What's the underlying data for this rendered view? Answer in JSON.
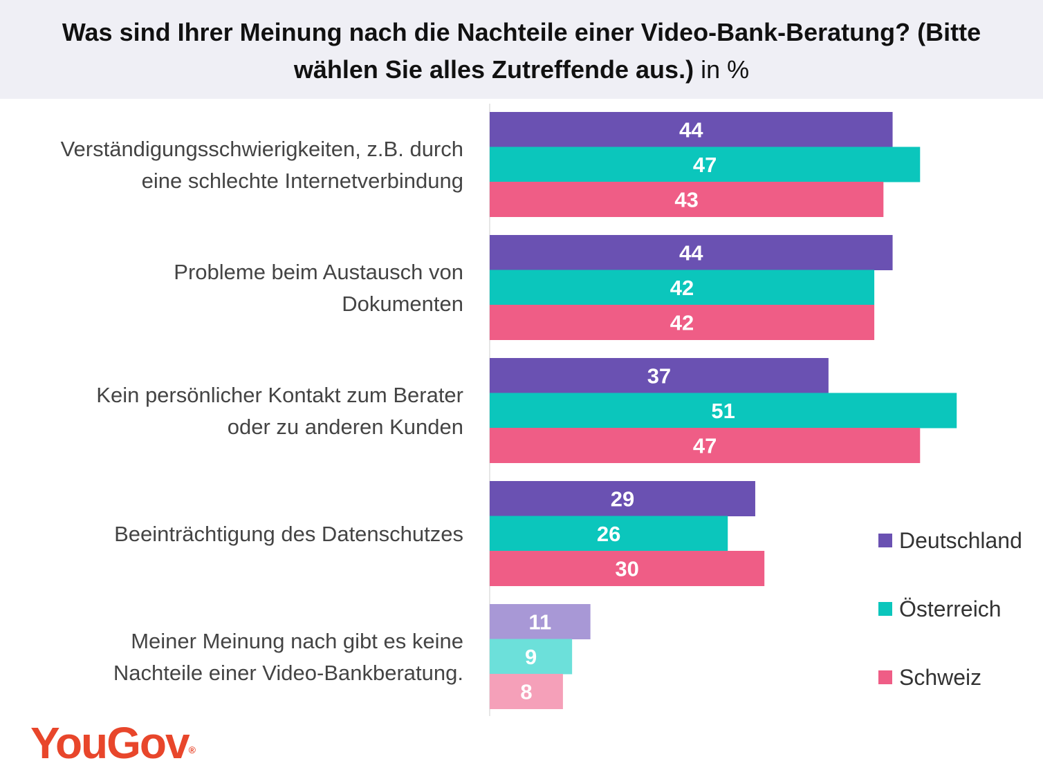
{
  "title": {
    "main": "Was sind Ihrer Meinung nach die Nachteile einer Video-Bank-Beratung? (Bitte wählen Sie alles Zutreffende aus.)",
    "unit": "in %"
  },
  "brand": {
    "name": "YouGov",
    "mark": "®",
    "color": "#e8462b"
  },
  "colors": {
    "header_bg": "#efeff5",
    "deutschland": "#6a51b2",
    "oesterreich": "#0bc6bc",
    "schweiz": "#ef5d86",
    "deutschland_light": "#a898d6",
    "oesterreich_light": "#6ce0da",
    "schweiz_light": "#f5a0b9"
  },
  "chart_data": {
    "type": "bar",
    "orientation": "horizontal",
    "categories": [
      [
        "Verständigungsschwierigkeiten, z.B. durch",
        "eine schlechte Internetverbindung"
      ],
      [
        "Probleme beim Austausch von",
        "Dokumenten"
      ],
      [
        "Kein persönlicher Kontakt zum Berater",
        "oder zu anderen Kunden"
      ],
      [
        "Beeinträchtigung des Datenschutzes"
      ],
      [
        "Meiner Meinung nach gibt es keine",
        "Nachteile einer Video-Bankberatung."
      ]
    ],
    "series": [
      {
        "name": "Deutschland",
        "values": [
          44,
          44,
          37,
          29,
          11
        ]
      },
      {
        "name": "Österreich",
        "values": [
          47,
          42,
          51,
          26,
          9
        ]
      },
      {
        "name": "Schweiz",
        "values": [
          43,
          42,
          47,
          30,
          8
        ]
      }
    ],
    "unit": "%",
    "data_labels": true,
    "legend": "right",
    "grid": false,
    "last_category_lighter": true
  }
}
